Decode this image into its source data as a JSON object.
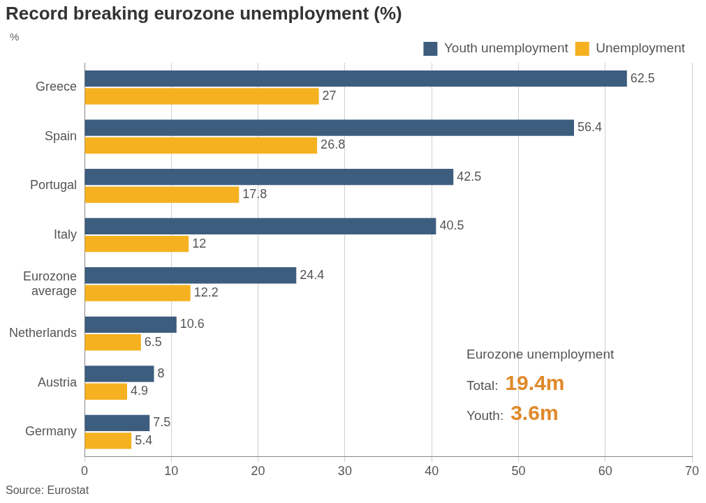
{
  "chart_data": {
    "type": "bar",
    "orientation": "horizontal",
    "title": "Record breaking eurozone unemployment (%)",
    "xlabel": "%",
    "categories": [
      "Greece",
      "Spain",
      "Portugal",
      "Italy",
      "Eurozone average",
      "Netherlands",
      "Austria",
      "Germany"
    ],
    "series": [
      {
        "name": "Youth unemployment",
        "color": "#3d5d7e",
        "values": [
          62.5,
          56.4,
          42.5,
          40.5,
          24.4,
          10.6,
          8,
          7.5
        ]
      },
      {
        "name": "Unemployment",
        "color": "#f5b120",
        "values": [
          27,
          26.8,
          17.8,
          12,
          12.2,
          6.5,
          4.9,
          5.4
        ]
      }
    ],
    "xlim": [
      0,
      70
    ],
    "xticks": [
      0,
      10,
      20,
      30,
      40,
      50,
      60,
      70
    ],
    "grid": "x",
    "legend": "top right",
    "data_labels": true,
    "annotations": [
      "Eurozone unemployment",
      "Total:",
      "19.4m",
      "Youth:",
      "3.6m",
      "Source: Eurostat"
    ]
  }
}
